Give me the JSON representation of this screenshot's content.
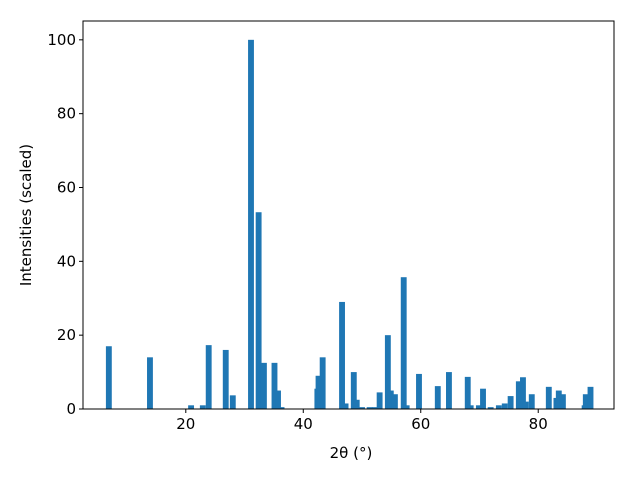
{
  "chart_data": {
    "type": "bar",
    "xlabel": "2θ (°)",
    "ylabel": "Intensities (scaled)",
    "color": "#1f77b4",
    "bar_width": 1,
    "x": [
      6.9,
      13.9,
      20.9,
      22.9,
      23.9,
      26.8,
      28,
      31.1,
      32.4,
      33.3,
      35.1,
      35.7,
      36.3,
      42.4,
      42.6,
      43.3,
      46.6,
      47.2,
      48.6,
      49.1,
      50,
      51.3,
      52.2,
      53,
      54.4,
      54.9,
      55.6,
      57.1,
      57.6,
      59.7,
      62.9,
      64.8,
      68,
      68.5,
      69.9,
      70.6,
      71.9,
      73.3,
      74.3,
      75.3,
      76.7,
      77.4,
      77.9,
      78.9,
      81.8,
      83.1,
      83.5,
      84.2,
      87.9,
      88.1,
      88.9
    ],
    "values": [
      17,
      14,
      1,
      1,
      17.3,
      16,
      3.7,
      100,
      53.3,
      12.5,
      12.5,
      5,
      0.5,
      5.5,
      9,
      14,
      29,
      1.5,
      10,
      2.5,
      0.5,
      0.5,
      0.5,
      4.5,
      20,
      5,
      4,
      35.7,
      1,
      9.5,
      6.2,
      10,
      8.7,
      1,
      1,
      5.5,
      0.5,
      1,
      1.5,
      3.5,
      7.5,
      8.6,
      2,
      4,
      6,
      3,
      5,
      4,
      1,
      4,
      6
    ],
    "xlim": [
      2.5,
      92.9
    ],
    "ylim": [
      0,
      105.1
    ],
    "xticks": [
      20,
      40,
      60,
      80
    ],
    "yticks": [
      0,
      20,
      40,
      60,
      80,
      100
    ]
  }
}
